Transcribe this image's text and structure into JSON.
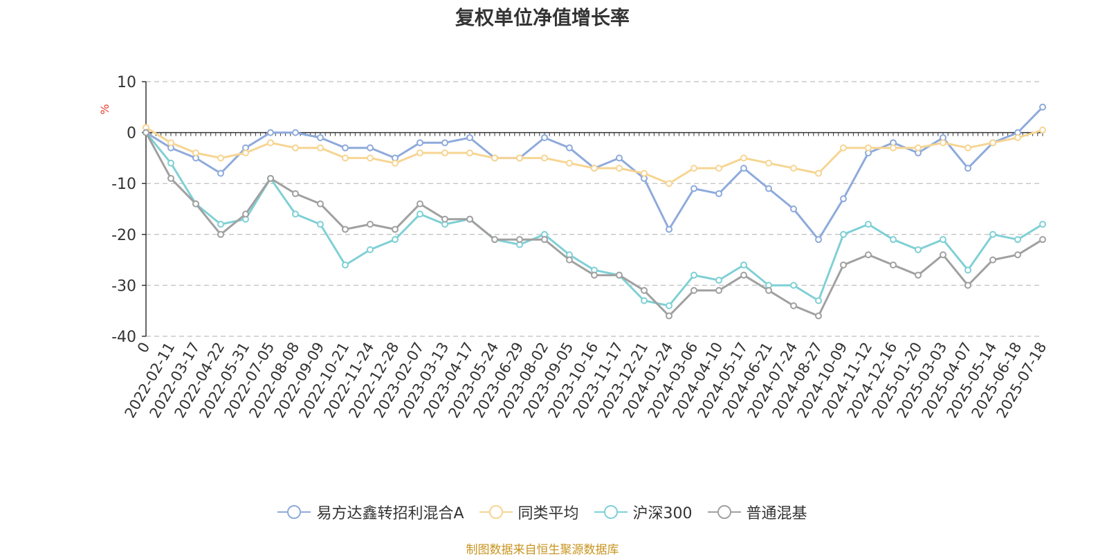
{
  "chart_data": {
    "type": "line",
    "title": "复权单位净值增长率",
    "ylabel": "%",
    "ylim": [
      -40,
      10
    ],
    "yticks": [
      10,
      0,
      -10,
      -20,
      -30,
      -40
    ],
    "grid": true,
    "legend_position": "bottom",
    "x_ticks": [
      "0",
      "2022-02-11",
      "2022-03-17",
      "2022-04-22",
      "2022-05-31",
      "2022-07-05",
      "2022-08-08",
      "2022-09-09",
      "2022-10-21",
      "2022-11-24",
      "2022-12-28",
      "2023-02-07",
      "2023-03-13",
      "2023-04-17",
      "2023-05-24",
      "2023-06-29",
      "2023-08-02",
      "2023-09-05",
      "2023-10-16",
      "2023-11-17",
      "2023-12-21",
      "2024-01-24",
      "2024-03-06",
      "2024-04-10",
      "2024-05-17",
      "2024-06-21",
      "2024-07-24",
      "2024-08-27",
      "2024-10-09",
      "2024-11-12",
      "2024-12-16",
      "2025-01-20",
      "2025-03-03",
      "2025-04-07",
      "2025-05-14",
      "2025-06-18",
      "2025-07-18"
    ],
    "series": [
      {
        "name": "易方达鑫转招利混合A",
        "color": "#8eaadb",
        "values": [
          0,
          -3,
          -5,
          -8,
          -3,
          0,
          0,
          -1,
          -3,
          -3,
          -5,
          -2,
          -2,
          -1,
          -5,
          -5,
          -1,
          -3,
          -7,
          -5,
          -9,
          -19,
          -11,
          -12,
          -7,
          -11,
          -15,
          -21,
          -13,
          -4,
          -2,
          -4,
          -1,
          -7,
          -2,
          0,
          5
        ]
      },
      {
        "name": "同类平均",
        "color": "#f6d592",
        "values": [
          1,
          -2,
          -4,
          -5,
          -4,
          -2,
          -3,
          -3,
          -5,
          -5,
          -6,
          -4,
          -4,
          -4,
          -5,
          -5,
          -5,
          -6,
          -7,
          -7,
          -8,
          -10,
          -7,
          -7,
          -5,
          -6,
          -7,
          -8,
          -3,
          -3,
          -3,
          -3,
          -2,
          -3,
          -2,
          -1,
          0.5
        ]
      },
      {
        "name": "沪深300",
        "color": "#7fd0d5",
        "values": [
          0,
          -6,
          -14,
          -18,
          -17,
          -9,
          -16,
          -18,
          -26,
          -23,
          -21,
          -16,
          -18,
          -17,
          -21,
          -22,
          -20,
          -24,
          -27,
          -28,
          -33,
          -34,
          -28,
          -29,
          -26,
          -30,
          -30,
          -33,
          -20,
          -18,
          -21,
          -23,
          -21,
          -27,
          -20,
          -21,
          -18
        ]
      },
      {
        "name": "普通混基",
        "color": "#a0a0a0",
        "values": [
          0,
          -9,
          -14,
          -20,
          -16,
          -9,
          -12,
          -14,
          -19,
          -18,
          -19,
          -14,
          -17,
          -17,
          -21,
          -21,
          -21,
          -25,
          -28,
          -28,
          -31,
          -36,
          -31,
          -31,
          -28,
          -31,
          -34,
          -36,
          -26,
          -24,
          -26,
          -28,
          -24,
          -30,
          -25,
          -24,
          -21
        ]
      }
    ]
  },
  "source": "制图数据来自恒生聚源数据库"
}
